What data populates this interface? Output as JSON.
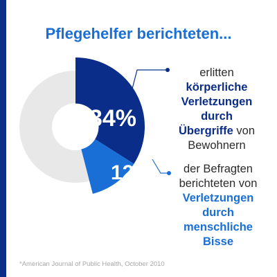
{
  "title": "Pflegehelfer berichteten...",
  "colors": {
    "accent": "#1a6fd6",
    "bar": "#0a2d8a",
    "slice_dark": "#0a2d8a",
    "slice_light": "#1a6fd6",
    "ring": "#e8e8e8"
  },
  "chart_data": {
    "type": "pie",
    "series": [
      {
        "label": "34%",
        "value": 34,
        "callout": [
          {
            "text": "erlitten",
            "bold": false,
            "color": "text"
          },
          {
            "text": "körperliche",
            "bold": true,
            "color": "dark"
          },
          {
            "text": "Verletzungen",
            "bold": true,
            "color": "dark"
          },
          {
            "text": "durch",
            "bold": true,
            "color": "dark"
          },
          {
            "text": "Übergriffe",
            "bold": true,
            "color": "dark",
            "suffix": " von"
          },
          {
            "text": "Bewohnern",
            "bold": false,
            "color": "text"
          }
        ]
      },
      {
        "label": "12%",
        "value": 12,
        "callout": [
          {
            "text": "der Befragten",
            "bold": false,
            "color": "text"
          },
          {
            "text": "berichteten von",
            "bold": false,
            "color": "text"
          },
          {
            "text": "Verletzungen",
            "bold": true,
            "color": "light"
          },
          {
            "text": "durch",
            "bold": true,
            "color": "light"
          },
          {
            "text": "menschliche",
            "bold": true,
            "color": "light"
          },
          {
            "text": "Bisse",
            "bold": true,
            "color": "light"
          }
        ]
      }
    ]
  },
  "source": "*American Journal of Public Health, October 2010"
}
